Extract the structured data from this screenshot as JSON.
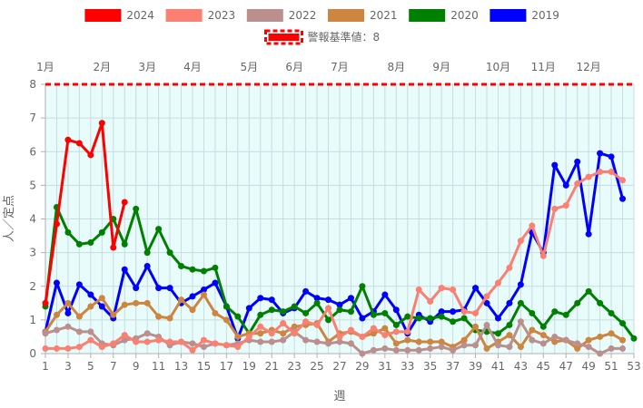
{
  "chart_data": {
    "type": "line",
    "xlabel": "週",
    "ylabel": "人／定点",
    "ylim": [
      0,
      8
    ],
    "yticks": [
      0,
      1,
      2,
      3,
      4,
      5,
      6,
      7,
      8
    ],
    "xlim": [
      1,
      53
    ],
    "xticks": [
      1,
      3,
      5,
      7,
      9,
      11,
      13,
      15,
      17,
      19,
      21,
      23,
      25,
      27,
      29,
      31,
      33,
      35,
      37,
      39,
      41,
      43,
      45,
      47,
      49,
      51,
      53
    ],
    "month_labels": [
      {
        "label": "1月",
        "week": 1
      },
      {
        "label": "2月",
        "week": 6
      },
      {
        "label": "3月",
        "week": 10
      },
      {
        "label": "4月",
        "week": 14
      },
      {
        "label": "5月",
        "week": 19
      },
      {
        "label": "6月",
        "week": 23
      },
      {
        "label": "7月",
        "week": 27
      },
      {
        "label": "8月",
        "week": 32
      },
      {
        "label": "9月",
        "week": 36
      },
      {
        "label": "10月",
        "week": 41
      },
      {
        "label": "11月",
        "week": 45
      },
      {
        "label": "12月",
        "week": 49
      }
    ],
    "grid": true,
    "plot_background": "#e8fcfc",
    "legend_position": "top",
    "threshold": {
      "label": "警報基準値：8",
      "value": 8,
      "color": "#ff0000"
    },
    "series": [
      {
        "name": "2024",
        "color": "#ff0000",
        "values": [
          1.5,
          3.85,
          6.35,
          6.25,
          5.9,
          6.85,
          3.15,
          4.5
        ]
      },
      {
        "name": "2023",
        "color": "#fa8072",
        "values": [
          0.15,
          0.15,
          0.15,
          0.2,
          0.4,
          0.2,
          0.3,
          0.55,
          0.35,
          0.35,
          0.4,
          0.35,
          0.35,
          0.1,
          0.4,
          0.3,
          0.25,
          0.2,
          0.5,
          0.8,
          0.6,
          0.9,
          0.6,
          0.95,
          0.85,
          1.35,
          0.5,
          0.7,
          0.5,
          0.75,
          0.55,
          0.65,
          0.65,
          1.9,
          1.55,
          1.95,
          1.9,
          1.25,
          1.2,
          1.7,
          2.1,
          2.55,
          3.35,
          3.8,
          2.9,
          4.3,
          4.4,
          5.05,
          5.25,
          5.4,
          5.4,
          5.15
        ]
      },
      {
        "name": "2022",
        "color": "#bc8f8f",
        "values": [
          0.6,
          0.7,
          0.8,
          0.65,
          0.65,
          0.3,
          0.25,
          0.4,
          0.45,
          0.6,
          0.5,
          0.25,
          0.35,
          0.3,
          0.2,
          0.3,
          0.25,
          0.3,
          0.4,
          0.35,
          0.35,
          0.4,
          0.65,
          0.4,
          0.35,
          0.3,
          0.35,
          0.3,
          0.0,
          0.1,
          0.15,
          0.1,
          0.1,
          0.1,
          0.15,
          0.2,
          0.1,
          0.25,
          0.25,
          0.85,
          0.25,
          0.2,
          0.95,
          0.4,
          0.3,
          0.5,
          0.4,
          0.3,
          0.2,
          0.0,
          0.15,
          0.15
        ]
      },
      {
        "name": "2021",
        "color": "#cd853f",
        "values": [
          0.65,
          1.15,
          1.5,
          1.1,
          1.4,
          1.65,
          1.15,
          1.45,
          1.5,
          1.5,
          1.1,
          1.05,
          1.6,
          1.3,
          1.75,
          1.2,
          1.0,
          0.5,
          0.6,
          0.6,
          0.7,
          0.6,
          0.8,
          0.85,
          0.9,
          0.35,
          0.6,
          0.65,
          0.5,
          0.6,
          0.75,
          0.3,
          0.4,
          0.35,
          0.35,
          0.35,
          0.2,
          0.4,
          0.8,
          0.15,
          0.35,
          0.55,
          0.2,
          0.7,
          0.55,
          0.35,
          0.4,
          0.15,
          0.4,
          0.5,
          0.6,
          0.4
        ]
      },
      {
        "name": "2020",
        "color": "#008000",
        "values": [
          1.4,
          4.35,
          3.6,
          3.25,
          3.3,
          3.6,
          4.0,
          3.25,
          4.3,
          3.0,
          3.7,
          3.0,
          2.6,
          2.5,
          2.45,
          2.55,
          1.4,
          1.1,
          0.6,
          1.15,
          1.3,
          1.25,
          1.4,
          1.2,
          1.5,
          1.0,
          1.3,
          1.25,
          2.0,
          1.15,
          1.2,
          0.85,
          1.1,
          1.05,
          1.05,
          1.1,
          0.95,
          1.05,
          0.7,
          0.65,
          0.6,
          0.85,
          1.5,
          1.2,
          0.8,
          1.25,
          1.15,
          1.5,
          1.85,
          1.5,
          1.2,
          0.9,
          0.45
        ]
      },
      {
        "name": "2019",
        "color": "#0000ff",
        "values": [
          0.65,
          2.1,
          1.2,
          2.05,
          1.75,
          1.4,
          1.05,
          2.5,
          1.95,
          2.6,
          1.95,
          1.95,
          1.5,
          1.7,
          1.9,
          2.1,
          1.4,
          0.45,
          1.35,
          1.65,
          1.6,
          1.2,
          1.35,
          1.85,
          1.65,
          1.6,
          1.45,
          1.65,
          1.05,
          1.25,
          1.75,
          1.3,
          0.6,
          1.15,
          0.95,
          1.25,
          1.25,
          1.3,
          1.95,
          1.5,
          1.05,
          1.5,
          2.05,
          3.6,
          3.0,
          5.6,
          5.0,
          5.7,
          3.55,
          5.95,
          5.85,
          4.6
        ]
      }
    ]
  }
}
